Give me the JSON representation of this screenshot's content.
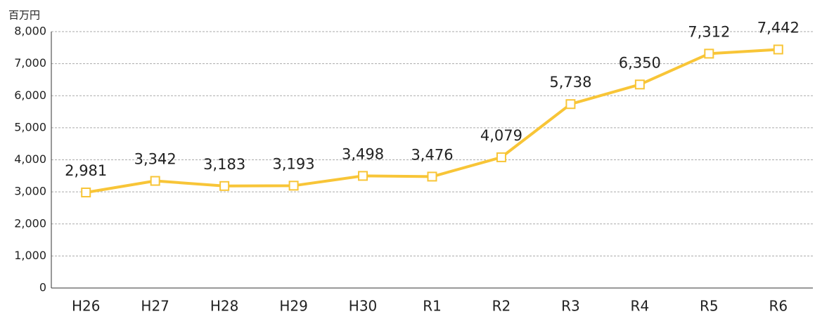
{
  "chart_data": {
    "type": "line",
    "unit_label": "百万円",
    "categories": [
      "H26",
      "H27",
      "H28",
      "H29",
      "H30",
      "R1",
      "R2",
      "R3",
      "R4",
      "R5",
      "R6"
    ],
    "series": [
      {
        "color": "#f8c537",
        "values": [
          2981,
          3342,
          3183,
          3193,
          3498,
          3476,
          4079,
          5738,
          6350,
          7312,
          7442
        ],
        "value_labels": [
          "2,981",
          "3,342",
          "3,183",
          "3,193",
          "3,498",
          "3,476",
          "4,079",
          "5,738",
          "6,350",
          "7,312",
          "7,442"
        ]
      }
    ],
    "ylim": [
      0,
      8000
    ],
    "yticks": [
      0,
      {
        "value": 1000,
        "label": "1,000"
      },
      {
        "value": 2000,
        "label": "2,000"
      },
      {
        "value": 3000,
        "label": "3,000"
      },
      {
        "value": 4000,
        "label": "4,000"
      },
      {
        "value": 5000,
        "label": "5,000"
      },
      {
        "value": 6000,
        "label": "6,000"
      },
      {
        "value": 7000,
        "label": "7,000"
      },
      {
        "value": 8000,
        "label": "8,000"
      }
    ],
    "grid": true
  }
}
